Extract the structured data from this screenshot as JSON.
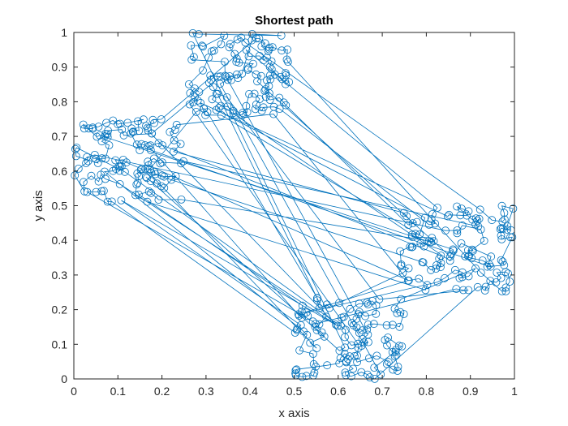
{
  "chart_data": {
    "type": "scatter",
    "title": "Shortest path",
    "xlabel": "x axis",
    "ylabel": "y axis",
    "xlim": [
      0,
      1
    ],
    "ylim": [
      0,
      1
    ],
    "xticks": [
      "0",
      "0.1",
      "0.2",
      "0.3",
      "0.4",
      "0.5",
      "0.6",
      "0.7",
      "0.8",
      "0.9",
      "1"
    ],
    "yticks": [
      "0",
      "0.1",
      "0.2",
      "0.3",
      "0.4",
      "0.5",
      "0.6",
      "0.7",
      "0.8",
      "0.9",
      "1"
    ],
    "grid": false,
    "marker": "circle-open",
    "connected": true,
    "color": "#0072BD",
    "clusters": [
      {
        "name": "left",
        "x_range": [
          0.0,
          0.25
        ],
        "y_range": [
          0.51,
          0.75
        ],
        "approx_points": 250
      },
      {
        "name": "top",
        "x_range": [
          0.26,
          0.49
        ],
        "y_range": [
          0.76,
          1.0
        ],
        "approx_points": 250
      },
      {
        "name": "right",
        "x_range": [
          0.74,
          1.0
        ],
        "y_range": [
          0.25,
          0.5
        ],
        "approx_points": 250
      },
      {
        "name": "bottom",
        "x_range": [
          0.5,
          0.75
        ],
        "y_range": [
          0.0,
          0.24
        ],
        "approx_points": 250
      }
    ]
  }
}
